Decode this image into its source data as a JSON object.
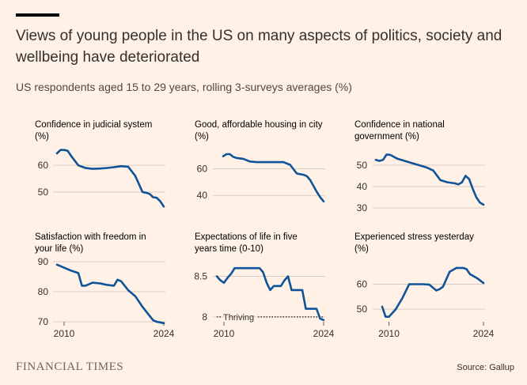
{
  "header": {
    "title": "Views of young people in the US on many aspects of politics, society and wellbeing have deteriorated",
    "subtitle": "US respondents aged 15 to 29 years, rolling 3-surveys averages (%)"
  },
  "footer": {
    "logo": "FINANCIAL TIMES",
    "source": "Source: Gallup"
  },
  "colors": {
    "background": "#FFF1E5",
    "line": "#0F5499",
    "grid": "#D9CCC1",
    "text": "#33302E"
  },
  "chart_data": [
    {
      "type": "line",
      "title": [
        "Confidence in judicial system",
        "(%)"
      ],
      "xlim": [
        2009,
        2024
      ],
      "ylim": [
        44,
        66
      ],
      "yticks": [
        50,
        60
      ],
      "xticks": [],
      "x": [
        2009,
        2009.5,
        2010,
        2010.5,
        2011,
        2012,
        2013,
        2014,
        2015,
        2016,
        2017,
        2018,
        2019,
        2020,
        2020.5,
        2021,
        2021.5,
        2022,
        2022.5,
        2023,
        2023.5,
        2024
      ],
      "values": [
        64.5,
        65.8,
        65.8,
        65.5,
        63.5,
        60,
        59,
        58.7,
        58.8,
        59,
        59.3,
        59.7,
        59.5,
        56,
        53,
        50,
        49.7,
        49.3,
        48,
        47.8,
        46.5,
        44.5
      ]
    },
    {
      "type": "line",
      "title": [
        "Good, affordable housing in city",
        "(%)"
      ],
      "xlim": [
        2009,
        2024
      ],
      "ylim": [
        33,
        74
      ],
      "yticks": [
        40,
        60
      ],
      "xticks": [],
      "x": [
        2009,
        2009.5,
        2010,
        2010.5,
        2011,
        2012,
        2013,
        2014,
        2015,
        2016,
        2017,
        2018,
        2019,
        2020,
        2020.5,
        2021,
        2021.5,
        2022,
        2022.5,
        2023,
        2023.5,
        2024
      ],
      "values": [
        69.5,
        71,
        71,
        69,
        68.2,
        67.5,
        65.5,
        65,
        65,
        65,
        65,
        65,
        63,
        56.5,
        56,
        55.5,
        54.5,
        51.5,
        47,
        42.5,
        38.5,
        35.5
      ]
    },
    {
      "type": "line",
      "title": [
        "Confidence in national",
        "government (%)"
      ],
      "xlim": [
        2009,
        2024
      ],
      "ylim": [
        30,
        57
      ],
      "yticks": [
        30,
        40,
        50
      ],
      "xticks": [],
      "x": [
        2009,
        2009.5,
        2010,
        2010.5,
        2011,
        2012,
        2013,
        2014,
        2015,
        2016,
        2017,
        2018,
        2019,
        2020,
        2020.5,
        2021,
        2021.5,
        2022,
        2022.5,
        2023,
        2023.5,
        2024
      ],
      "values": [
        52.5,
        52,
        52.5,
        55,
        54.8,
        53,
        52,
        51,
        50,
        49,
        47.5,
        43,
        42,
        41.5,
        41,
        42,
        45,
        43.5,
        39,
        35,
        32.5,
        31.5
      ]
    },
    {
      "type": "line",
      "title": [
        "Satisfaction with freedom in",
        "your life (%)"
      ],
      "xlim": [
        2009,
        2024
      ],
      "ylim": [
        70,
        90
      ],
      "yticks": [
        70,
        80,
        90
      ],
      "xticks": [
        2010,
        2024
      ],
      "x": [
        2009,
        2010,
        2011,
        2012,
        2012.5,
        2013,
        2014,
        2015,
        2016,
        2017,
        2017.5,
        2018,
        2019,
        2020,
        2021,
        2022,
        2022.5,
        2023,
        2023.5,
        2024
      ],
      "values": [
        89,
        88,
        87,
        86.2,
        82,
        82,
        83,
        82.8,
        82.3,
        82,
        84,
        83.5,
        80.5,
        78.5,
        75,
        72,
        70.5,
        70,
        69.8,
        69.5
      ]
    },
    {
      "type": "line",
      "title": [
        "Expectations of life in five",
        "years time (0-10)"
      ],
      "xlim": [
        2009,
        2024
      ],
      "ylim": [
        7.94,
        8.68
      ],
      "yticks": [
        8,
        8.5
      ],
      "xticks": [
        2010,
        2024
      ],
      "x": [
        2009,
        2009.5,
        2010,
        2010.5,
        2011,
        2011.5,
        2012,
        2013,
        2014,
        2015,
        2015.5,
        2016,
        2016.5,
        2017,
        2018,
        2018.5,
        2019,
        2019.5,
        2020,
        2021,
        2021.5,
        2022,
        2022.5,
        2023,
        2023.5,
        2024
      ],
      "values": [
        8.5,
        8.45,
        8.42,
        8.48,
        8.53,
        8.6,
        8.6,
        8.6,
        8.6,
        8.6,
        8.55,
        8.42,
        8.33,
        8.38,
        8.38,
        8.45,
        8.5,
        8.33,
        8.33,
        8.33,
        8.1,
        8.1,
        8.1,
        8.1,
        7.98,
        7.96
      ],
      "annotations": [
        {
          "text": "Thriving",
          "y": 8
        }
      ]
    },
    {
      "type": "line",
      "title": [
        "Experienced stress yesterday",
        "(%)"
      ],
      "xlim": [
        2009,
        2024
      ],
      "ylim": [
        45,
        69
      ],
      "yticks": [
        50,
        60
      ],
      "xticks": [
        2010,
        2024
      ],
      "x": [
        2009,
        2009.5,
        2010,
        2011,
        2012,
        2013,
        2014,
        2015,
        2016,
        2017,
        2017.5,
        2018,
        2019,
        2020,
        2021,
        2021.5,
        2022,
        2023,
        2024
      ],
      "values": [
        51,
        47,
        47,
        50,
        54.5,
        60,
        60,
        60,
        59.8,
        57.5,
        58,
        59,
        65,
        66.5,
        66.5,
        66,
        64,
        62.5,
        60.5
      ]
    }
  ]
}
